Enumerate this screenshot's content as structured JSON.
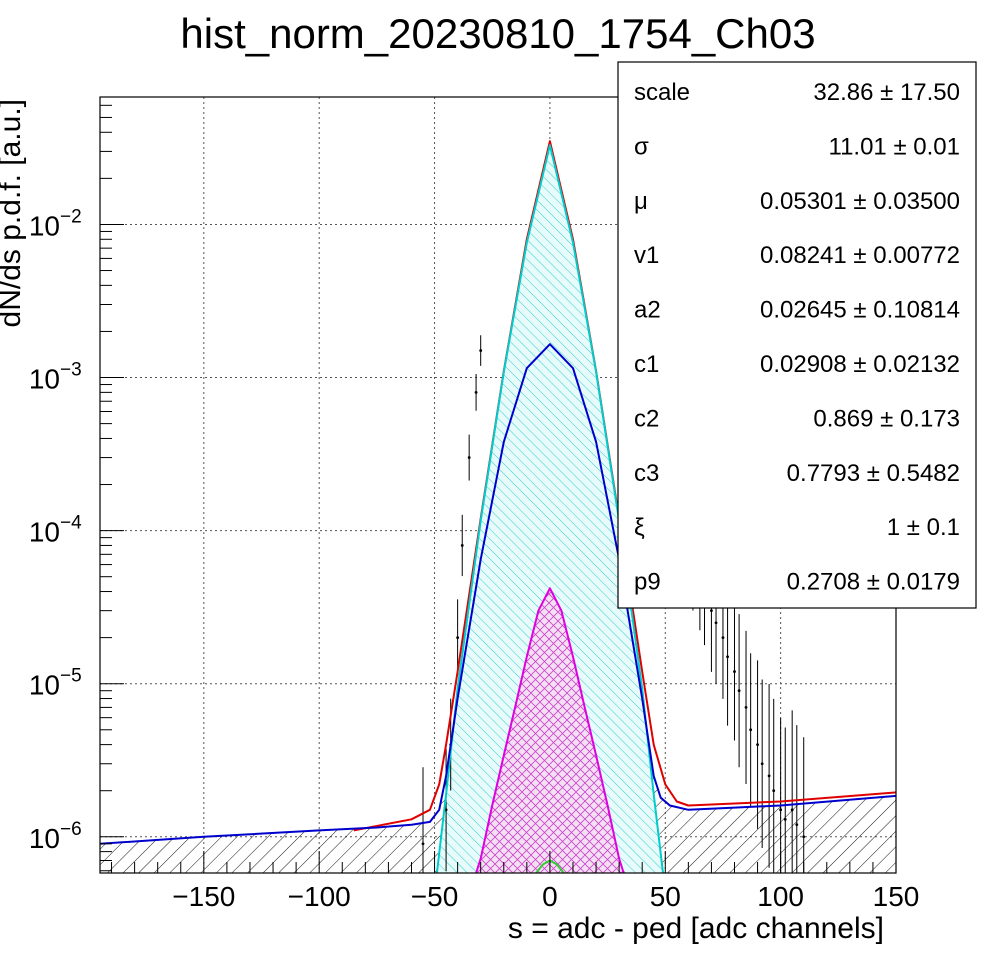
{
  "chart_data": {
    "type": "line",
    "title": "hist_norm_20230810_1754_Ch03",
    "xlabel": "s = adc - ped [adc channels]",
    "ylabel": "dN/ds p.d.f. [a.u.]",
    "xlim": [
      -195,
      150
    ],
    "ylim": [
      5.8e-07,
      0.068
    ],
    "y_scale": "log",
    "grid": true,
    "x_ticks": [
      -150,
      -100,
      -50,
      0,
      50,
      100,
      150
    ],
    "x_tick_labels": [
      "−150",
      "−100",
      "−50",
      "0",
      "50",
      "100",
      "150"
    ],
    "y_ticks": [
      {
        "value": 1e-06,
        "base": "10",
        "exp": "−6"
      },
      {
        "value": 1e-05,
        "base": "10",
        "exp": "−5"
      },
      {
        "value": 0.0001,
        "base": "10",
        "exp": "−4"
      },
      {
        "value": 0.001,
        "base": "10",
        "exp": "−3"
      },
      {
        "value": 0.01,
        "base": "10",
        "exp": "−2"
      }
    ],
    "stats": {
      "legend_position": "top-right",
      "rows": [
        {
          "name": "scale",
          "value": "32.86 ± 17.50"
        },
        {
          "name": "σ",
          "value": "11.01 ± 0.01"
        },
        {
          "name": "μ",
          "value": "0.05301 ± 0.03500"
        },
        {
          "name": "v1",
          "value": "0.08241 ± 0.00772"
        },
        {
          "name": "a2",
          "value": "0.02645 ± 0.10814"
        },
        {
          "name": "c1",
          "value": "0.02908 ± 0.02132"
        },
        {
          "name": "c2",
          "value": "0.869 ± 0.173"
        },
        {
          "name": "c3",
          "value": "0.7793 ± 0.5482"
        },
        {
          "name": "ξ",
          "value": "1 ± 0.1"
        },
        {
          "name": "p9",
          "value": "0.2708 ± 0.0179"
        }
      ]
    },
    "series": [
      {
        "role": "total fit",
        "color": "#e00000",
        "x": [
          -85,
          -60,
          -52,
          -48,
          -45,
          -40,
          -30,
          -20,
          -10,
          0,
          10,
          20,
          30,
          40,
          45,
          50,
          55,
          60,
          80,
          100,
          150
        ],
        "y": [
          1.1e-06,
          1.3e-06,
          1.5e-06,
          2.2e-06,
          4e-06,
          1.2e-05,
          0.00012,
          0.0011,
          0.008,
          0.035,
          0.008,
          0.0011,
          0.00012,
          1.2e-05,
          4e-06,
          2.2e-06,
          1.7e-06,
          1.6e-06,
          1.65e-06,
          1.7e-06,
          1.95e-06
        ]
      },
      {
        "role": "background",
        "color": "#0000cc",
        "fill": "diagonal-hatch",
        "x": [
          -195,
          -150,
          -100,
          -75,
          -60,
          -52,
          -48,
          -45,
          -40,
          -30,
          -20,
          -10,
          0,
          10,
          20,
          30,
          40,
          45,
          48,
          52,
          60,
          80,
          100,
          150
        ],
        "y": [
          9e-07,
          1e-06,
          1.1e-06,
          1.15e-06,
          1.2e-06,
          1.25e-06,
          1.5e-06,
          2.5e-06,
          8e-06,
          6.5e-05,
          0.00038,
          0.00115,
          0.00165,
          0.00115,
          0.00038,
          6.5e-05,
          8e-06,
          2.5e-06,
          1.8e-06,
          1.6e-06,
          1.5e-06,
          1.55e-06,
          1.6e-06,
          1.85e-06
        ]
      },
      {
        "role": "signal peak",
        "color": "#00cccc",
        "fill": "hatch",
        "x": [
          -49,
          -45,
          -40,
          -30,
          -20,
          -10,
          0,
          10,
          20,
          30,
          40,
          45,
          49
        ],
        "y": [
          5.8e-07,
          1.9e-06,
          9.3e-06,
          0.000116,
          0.00109,
          0.0076,
          0.033,
          0.0076,
          0.00109,
          0.000116,
          9.3e-06,
          1.9e-06,
          5.8e-07
        ]
      },
      {
        "role": "second component",
        "color": "#e000e0",
        "fill": "crosshatch",
        "x": [
          -32,
          -30,
          -25,
          -20,
          -15,
          -10,
          -5,
          0,
          5,
          10,
          15,
          20,
          25,
          30,
          32
        ],
        "y": [
          5.8e-07,
          7.2e-07,
          1.6e-06,
          3.4e-06,
          7.1e-06,
          1.5e-05,
          3e-05,
          4.2e-05,
          3e-05,
          1.5e-05,
          7.1e-06,
          3.4e-06,
          1.6e-06,
          7.2e-07,
          5.8e-07
        ]
      },
      {
        "role": "third component",
        "color": "#33cc33",
        "x": [
          -6,
          -3,
          0,
          3,
          6
        ],
        "y": [
          5.8e-07,
          6.6e-07,
          7e-07,
          6.6e-07,
          5.8e-07
        ]
      }
    ],
    "data_points": {
      "color": "#000000",
      "x": [
        -55,
        -45,
        -43,
        -40,
        -38,
        -35,
        -32,
        -30,
        60,
        62,
        65,
        67,
        70,
        72,
        75,
        77,
        80,
        82,
        85,
        87,
        90,
        92,
        95,
        97,
        100,
        102,
        105,
        107,
        110
      ],
      "y": [
        9e-07,
        1.5e-06,
        4e-06,
        2e-05,
        8e-05,
        0.0003,
        0.0008,
        0.0015,
        8e-05,
        6e-05,
        5e-05,
        4e-05,
        3e-05,
        2.5e-05,
        2e-05,
        1.5e-05,
        1.2e-05,
        9e-06,
        7e-06,
        5e-06,
        4e-06,
        3e-06,
        2.5e-06,
        2e-06,
        1.5e-06,
        1.3e-06,
        1.5e-06,
        1.2e-06,
        1e-06
      ],
      "err": [
        0.5,
        0.4,
        0.3,
        0.25,
        0.2,
        0.15,
        0.12,
        0.1,
        0.3,
        0.3,
        0.35,
        0.35,
        0.4,
        0.4,
        0.4,
        0.45,
        0.45,
        0.5,
        0.5,
        0.5,
        0.55,
        0.55,
        0.6,
        0.6,
        0.6,
        0.6,
        0.65,
        0.65,
        0.65
      ]
    }
  }
}
